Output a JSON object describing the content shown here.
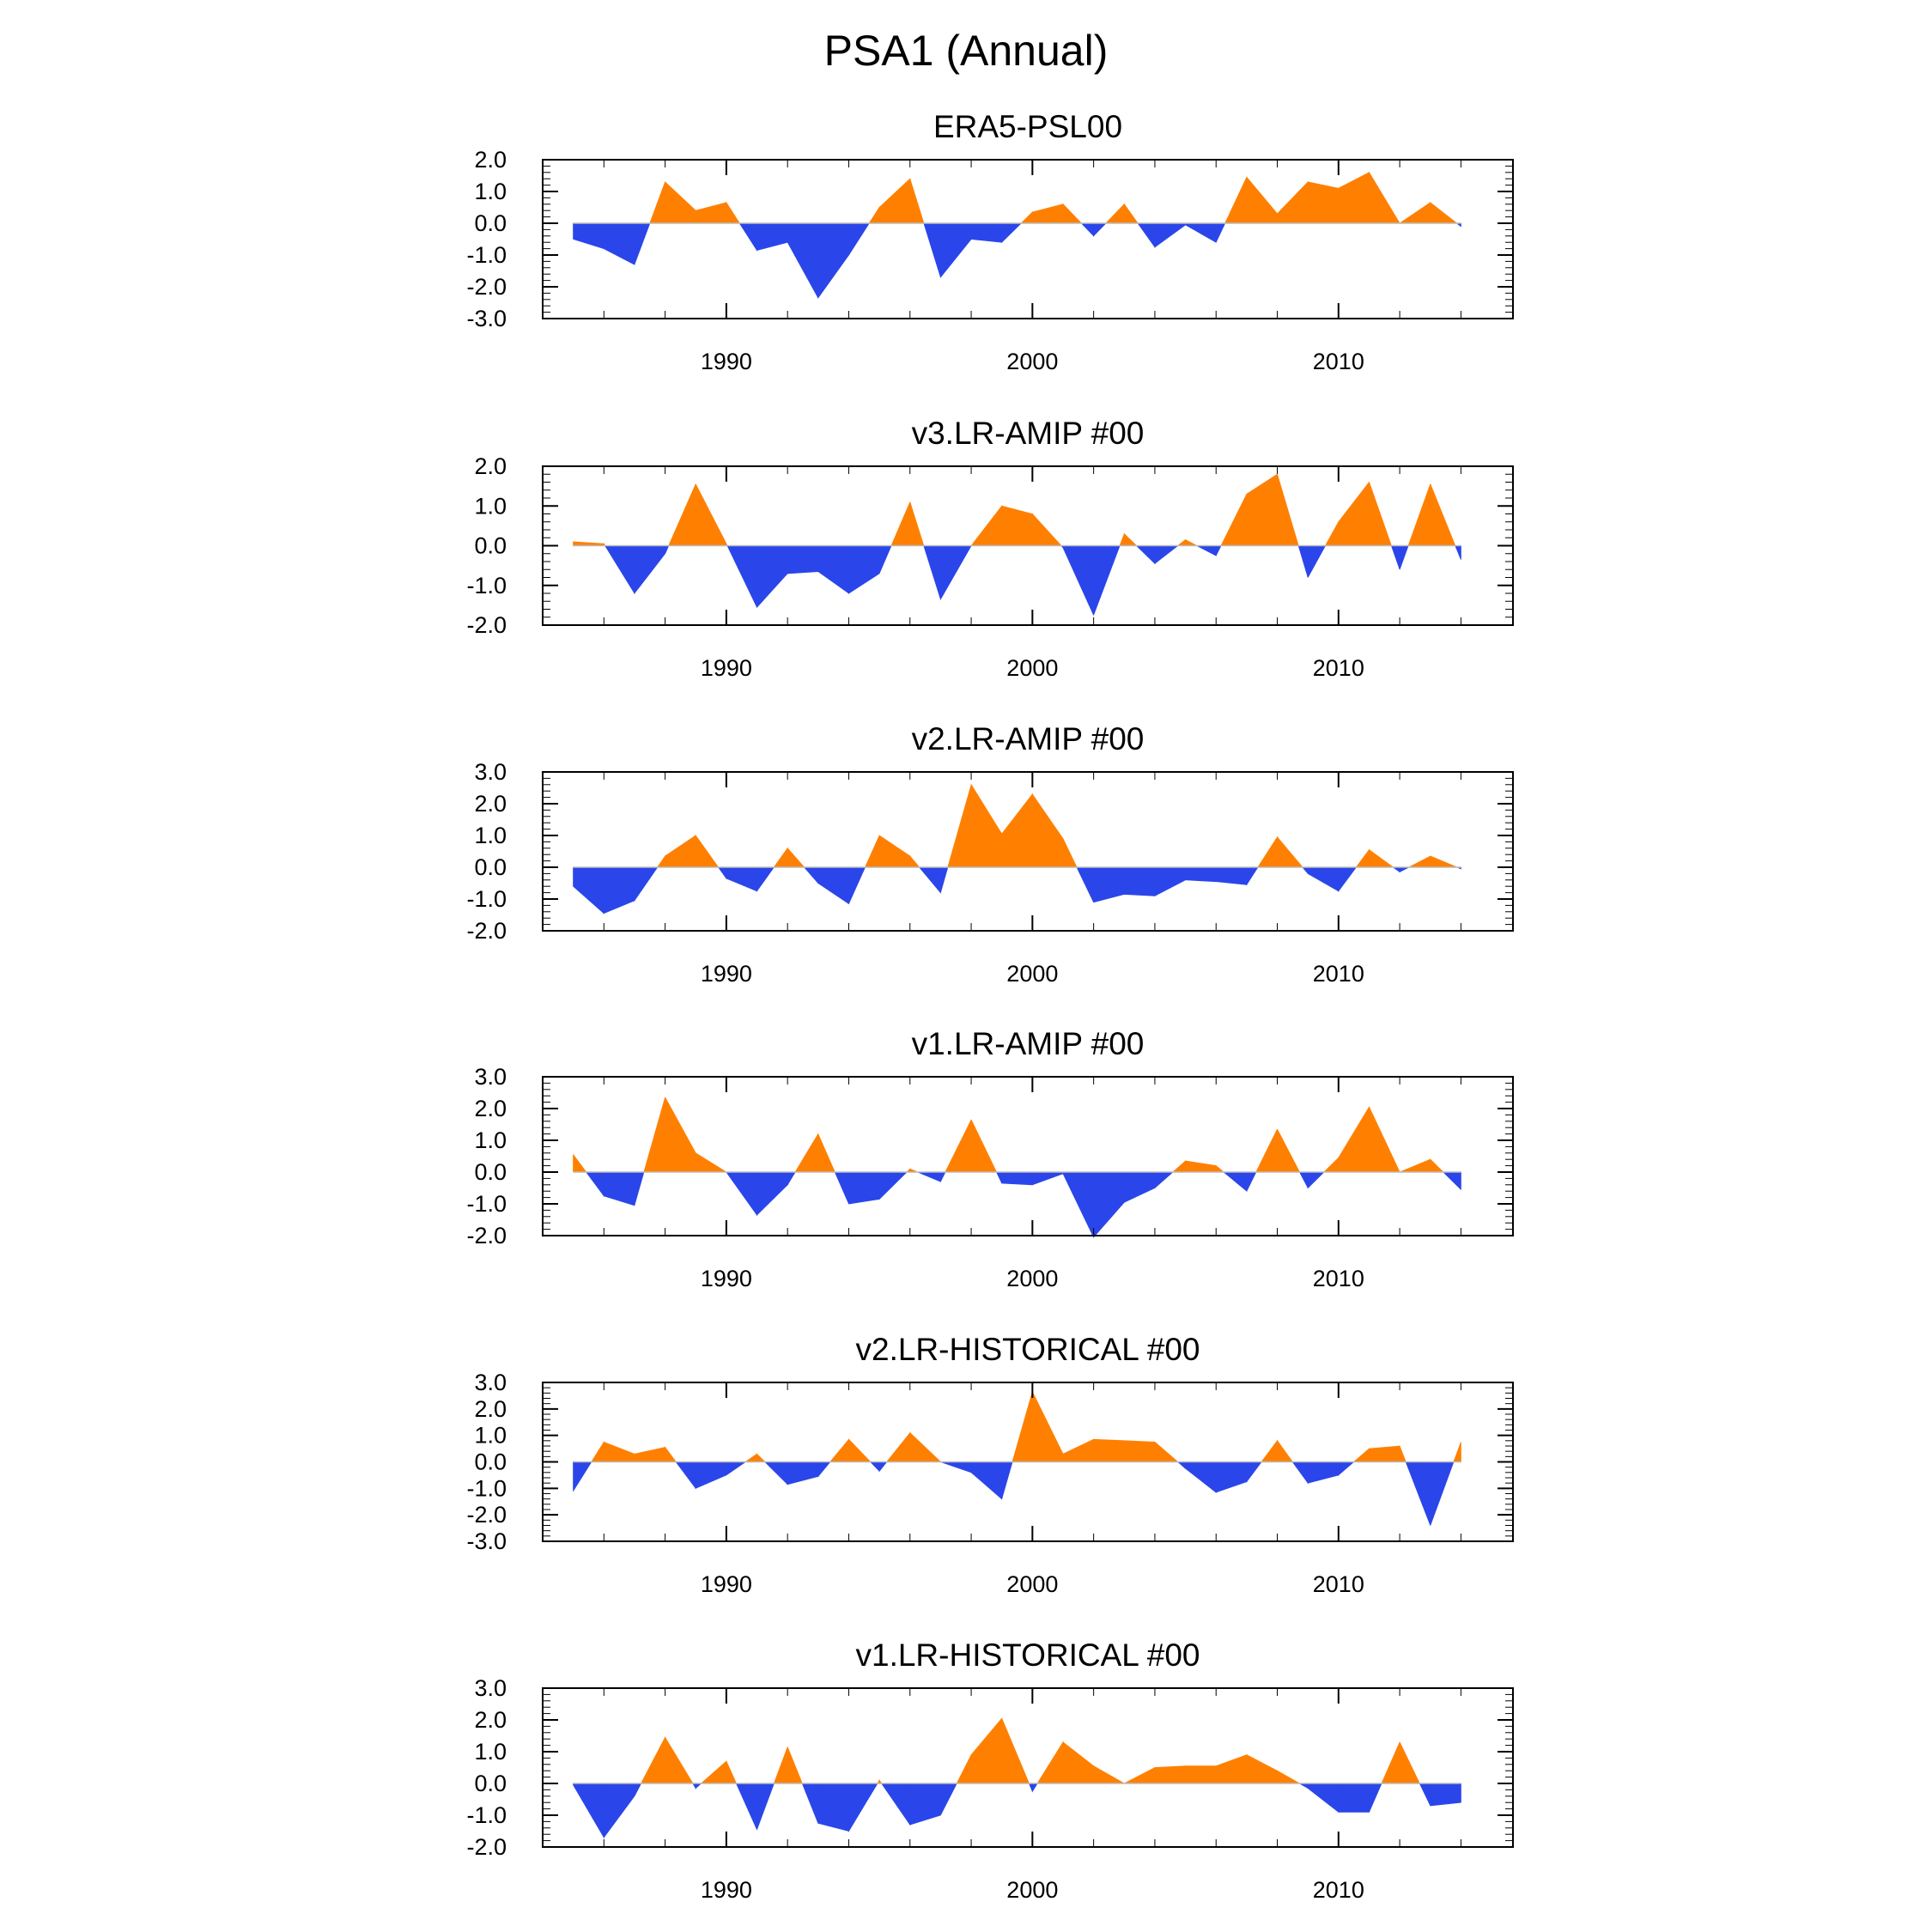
{
  "chart_data": {
    "title": "PSA1 (Annual)",
    "type": "area",
    "colors": {
      "positive": "#ff8000",
      "negative": "#2a46ea",
      "frame": "#000000",
      "zero_line": "#bbbbbb"
    },
    "x_ticks": [
      1990,
      2000,
      2010
    ],
    "xlim": [
      1984.0,
      2015.7
    ],
    "years": [
      1985,
      1986,
      1987,
      1988,
      1989,
      1990,
      1991,
      1992,
      1993,
      1994,
      1995,
      1996,
      1997,
      1998,
      1999,
      2000,
      2001,
      2002,
      2003,
      2004,
      2005,
      2006,
      2007,
      2008,
      2009,
      2010,
      2011,
      2012,
      2013,
      2014
    ],
    "panels": [
      {
        "title": "ERA5-PSL00",
        "ylim": [
          -3.0,
          2.0
        ],
        "y_ticks": [
          "2.0",
          "1.0",
          "0.0",
          "-1.0",
          "-2.0",
          "-3.0"
        ],
        "values": [
          -0.5,
          -0.8,
          -1.3,
          1.3,
          0.4,
          0.65,
          -0.85,
          -0.6,
          -2.35,
          -1.0,
          0.5,
          1.4,
          -1.7,
          -0.5,
          -0.6,
          0.35,
          0.6,
          -0.4,
          0.6,
          -0.75,
          -0.05,
          -0.6,
          1.45,
          0.3,
          1.3,
          1.1,
          1.6,
          0.0,
          0.65,
          -0.1
        ]
      },
      {
        "title": "v3.LR-AMIP  #00",
        "ylim": [
          -2.0,
          2.0
        ],
        "y_ticks": [
          "2.0",
          "1.0",
          "0.0",
          "-1.0",
          "-2.0"
        ],
        "values": [
          0.1,
          0.05,
          -1.2,
          -0.2,
          1.55,
          0.05,
          -1.55,
          -0.7,
          -0.65,
          -1.2,
          -0.7,
          1.1,
          -1.35,
          0.0,
          1.0,
          0.8,
          -0.05,
          -1.75,
          0.3,
          -0.45,
          0.15,
          -0.25,
          1.3,
          1.8,
          -0.8,
          0.6,
          1.6,
          -0.6,
          1.55,
          -0.35
        ]
      },
      {
        "title": "v2.LR-AMIP  #00",
        "ylim": [
          -2.0,
          3.0
        ],
        "y_ticks": [
          "3.0",
          "2.0",
          "1.0",
          "0.0",
          "-1.0",
          "-2.0"
        ],
        "values": [
          -0.6,
          -1.45,
          -1.05,
          0.35,
          1.0,
          -0.35,
          -0.75,
          0.6,
          -0.5,
          -1.15,
          1.0,
          0.35,
          -0.8,
          2.6,
          1.05,
          2.3,
          0.9,
          -1.1,
          -0.85,
          -0.9,
          -0.4,
          -0.45,
          -0.55,
          0.95,
          -0.2,
          -0.75,
          0.55,
          -0.15,
          0.35,
          -0.05
        ]
      },
      {
        "title": "v1.LR-AMIP  #00",
        "ylim": [
          -2.0,
          3.0
        ],
        "y_ticks": [
          "3.0",
          "2.0",
          "1.0",
          "0.0",
          "-1.0",
          "-2.0"
        ],
        "values": [
          0.55,
          -0.75,
          -1.05,
          2.35,
          0.6,
          0.0,
          -1.35,
          -0.4,
          1.2,
          -1.0,
          -0.85,
          0.1,
          -0.3,
          1.65,
          -0.35,
          -0.4,
          -0.05,
          -2.05,
          -0.95,
          -0.5,
          0.35,
          0.2,
          -0.6,
          1.35,
          -0.5,
          0.45,
          2.05,
          0.0,
          0.4,
          -0.55
        ]
      },
      {
        "title": "v2.LR-HISTORICAL  #00",
        "ylim": [
          -3.0,
          3.0
        ],
        "y_ticks": [
          "3.0",
          "2.0",
          "1.0",
          "0.0",
          "-1.0",
          "-2.0",
          "-3.0"
        ],
        "values": [
          -1.1,
          0.75,
          0.3,
          0.55,
          -1.0,
          -0.5,
          0.3,
          -0.85,
          -0.55,
          0.85,
          -0.35,
          1.1,
          0.0,
          -0.4,
          -1.4,
          2.65,
          0.3,
          0.85,
          0.8,
          0.75,
          -0.25,
          -1.15,
          -0.75,
          0.8,
          -0.8,
          -0.5,
          0.5,
          0.6,
          -2.4,
          0.75
        ]
      },
      {
        "title": "v1.LR-HISTORICAL  #00",
        "ylim": [
          -2.0,
          3.0
        ],
        "y_ticks": [
          "3.0",
          "2.0",
          "1.0",
          "0.0",
          "-1.0",
          "-2.0"
        ],
        "values": [
          -0.05,
          -1.7,
          -0.4,
          1.45,
          -0.15,
          0.7,
          -1.45,
          1.15,
          -1.25,
          -1.5,
          0.1,
          -1.3,
          -1.0,
          0.9,
          2.05,
          -0.25,
          1.3,
          0.55,
          0.0,
          0.5,
          0.55,
          0.55,
          0.9,
          0.4,
          -0.15,
          -0.9,
          -0.9,
          1.3,
          -0.7,
          -0.6
        ]
      }
    ]
  }
}
